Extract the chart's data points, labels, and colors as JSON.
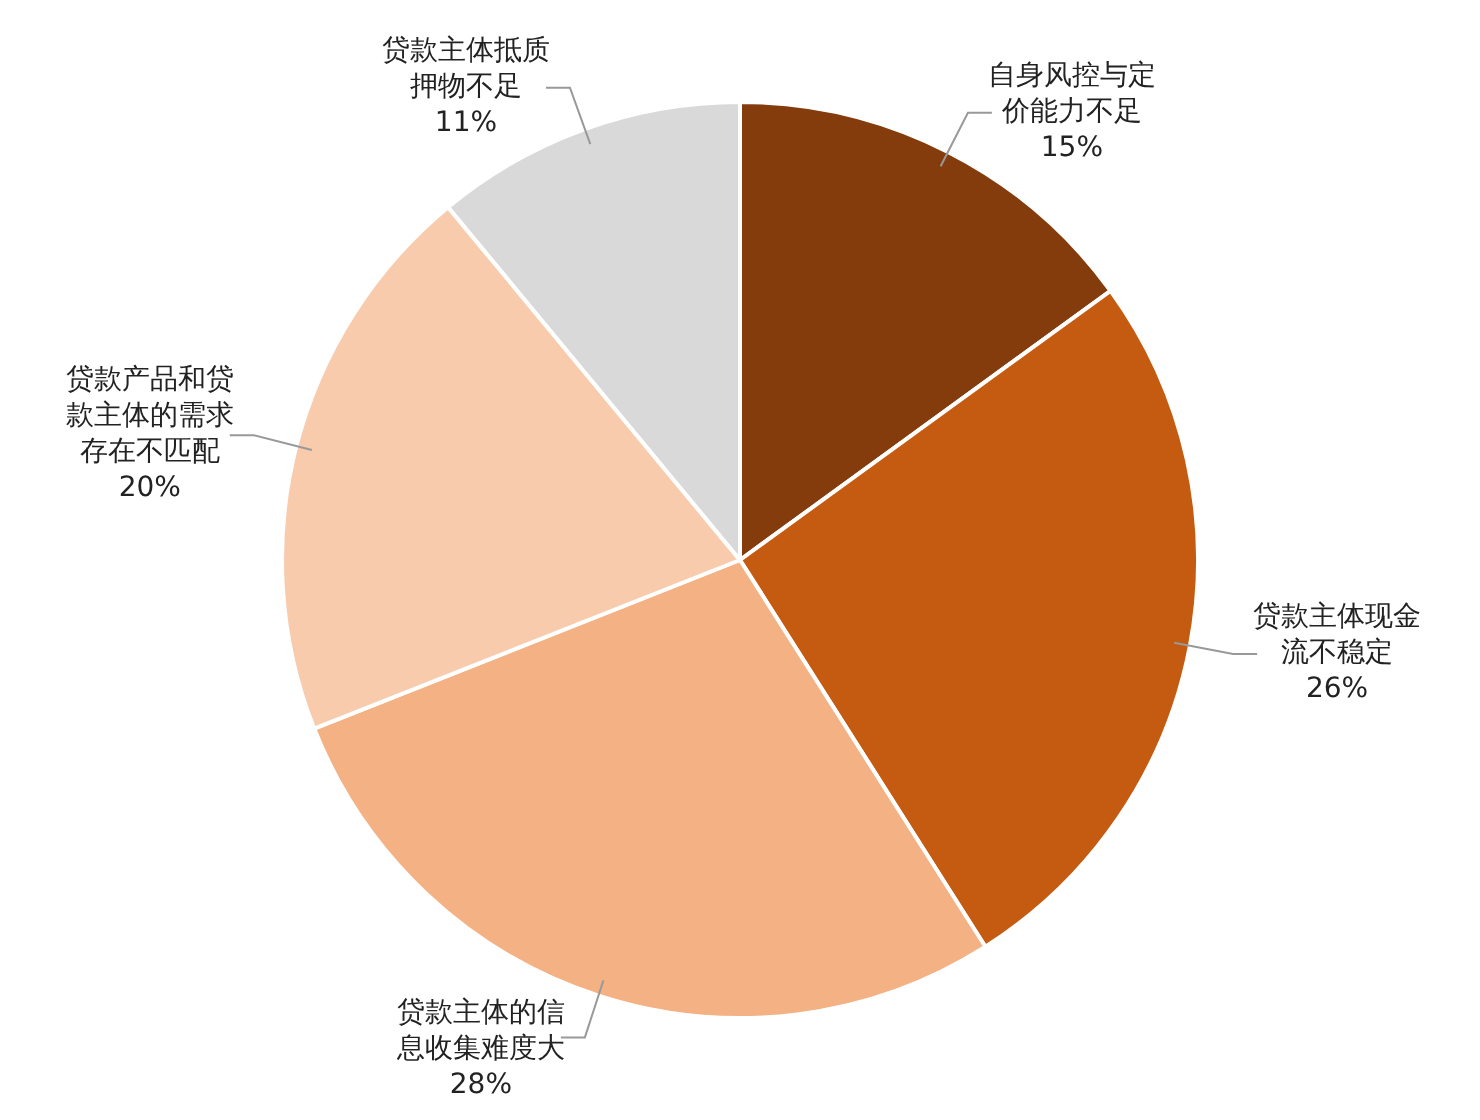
{
  "chart_data": {
    "type": "pie",
    "categories": [
      "自身风控与定价能力不足",
      "贷款主体现金流不稳定",
      "贷款主体的信息收集难度大",
      "贷款产品和贷款主体的需求存在不匹配",
      "贷款主体抵质押物不足"
    ],
    "values": [
      15,
      26,
      28,
      20,
      11
    ],
    "value_labels": [
      "15%",
      "26%",
      "28%",
      "20%",
      "11%"
    ],
    "colors": [
      "#843c0c",
      "#c55a11",
      "#f4b183",
      "#f8cbad",
      "#d9d9d9"
    ],
    "legend": false
  }
}
